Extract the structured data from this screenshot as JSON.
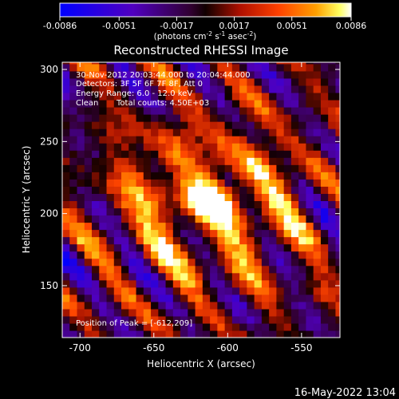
{
  "title": "Reconstructed RHESSI Image",
  "colorbar": {
    "ticks": [
      "-0.0086",
      "-0.0051",
      "-0.0017",
      "0.0017",
      "0.0051",
      "0.0086"
    ],
    "units_prefix": "(photons cm",
    "units_sup1": "-2",
    "units_mid1": " s",
    "units_sup2": "-1",
    "units_mid2": " asec",
    "units_sup3": "-2",
    "units_suffix": ")",
    "min": -0.0086,
    "max": 0.0086
  },
  "annotations": {
    "line1": "30-Nov-2012 20:03:44.000 to 20:04:44.000",
    "line2": "Detectors: 3F 5F 6F 7F 8F, Att 0",
    "line3": "Energy Range: 6.0 - 12.0 keV",
    "line4_a": "Clean",
    "line4_b": "Total counts: 4.50E+03",
    "peak": "Position of Peak = [-612,209]"
  },
  "footer": {
    "timestamp": "16-May-2022 13:04"
  },
  "colors": {
    "bg": "#000000",
    "axis": "#ffffff",
    "cmap_stops": [
      "#0000ff",
      "#4a00b0",
      "#300030",
      "#000000",
      "#a01000",
      "#ff4000",
      "#ff9900",
      "#ffff40",
      "#ffffff"
    ]
  },
  "chart_data": {
    "type": "heatmap",
    "title": "Reconstructed RHESSI Image",
    "xlabel": "Heliocentric X (arcsec)",
    "ylabel": "Heliocentric Y (arcsec)",
    "xlim": [
      -712,
      -524
    ],
    "ylim": [
      114,
      305
    ],
    "x_ticks": [
      -700,
      -650,
      -600,
      -550
    ],
    "x_tick_labels": [
      "-700",
      "-650",
      "-600",
      "-550"
    ],
    "y_ticks": [
      150,
      200,
      250,
      300
    ],
    "y_tick_labels": [
      "150",
      "200",
      "250",
      "300"
    ],
    "peak_position": [
      -612,
      209
    ],
    "peak_value": 0.0086,
    "source_sigma_arcsec": [
      12,
      8
    ],
    "colorbar_range": [
      -0.0086,
      0.0086
    ]
  }
}
